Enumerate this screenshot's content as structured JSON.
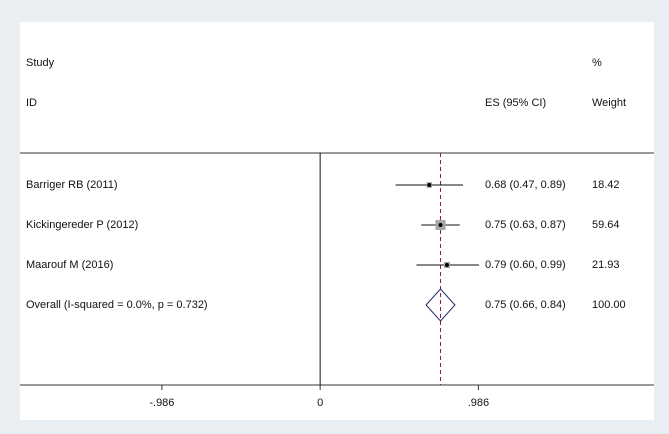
{
  "chart_data": {
    "type": "forest",
    "headers": {
      "study": "Study",
      "id": "ID",
      "es": "ES (95% CI)",
      "pct": "%",
      "weight": "Weight"
    },
    "studies": [
      {
        "name": "Barriger RB (2011)",
        "es": 0.68,
        "lo": 0.47,
        "hi": 0.89,
        "ci_label": "0.68 (0.47, 0.89)",
        "weight": 18.42
      },
      {
        "name": "Kickingereder P (2012)",
        "es": 0.75,
        "lo": 0.63,
        "hi": 0.87,
        "ci_label": "0.75 (0.63, 0.87)",
        "weight": 59.64
      },
      {
        "name": "Maarouf M (2016)",
        "es": 0.79,
        "lo": 0.6,
        "hi": 0.99,
        "ci_label": "0.79 (0.60, 0.99)",
        "weight": 21.93
      }
    ],
    "overall": {
      "name": "Overall  (I-squared = 0.0%, p = 0.732)",
      "es": 0.75,
      "lo": 0.66,
      "hi": 0.84,
      "ci_label": "0.75 (0.66, 0.84)",
      "weight": 100,
      "weight_label": "100.00"
    },
    "xlim": [
      -1.87,
      2.08
    ],
    "xticks": [
      {
        "value": -0.986,
        "label": "-.986"
      },
      0,
      {
        "value": 0.986,
        "label": ".986"
      }
    ],
    "box_color": "#a6a6a6",
    "diamond_color": "#2a2a6e",
    "overall_line_color": "#8b1a3a"
  }
}
